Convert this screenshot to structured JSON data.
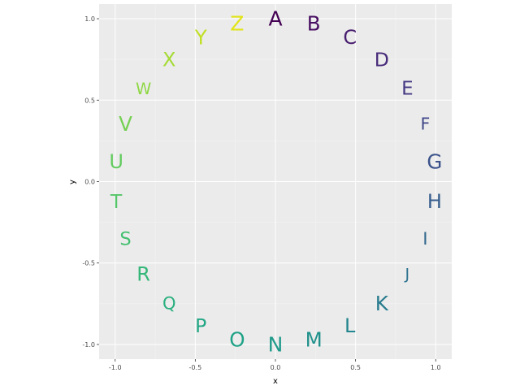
{
  "chart_data": {
    "type": "scatter",
    "title": "",
    "xlabel": "x",
    "ylabel": "y",
    "xlim": [
      -1.1,
      1.1
    ],
    "ylim": [
      -1.09,
      1.09
    ],
    "xticks": [
      -1.0,
      -0.5,
      0.0,
      0.5,
      1.0
    ],
    "xtick_labels": [
      "-1.0",
      "-0.5",
      "0.0",
      "0.5",
      "1.0"
    ],
    "yticks": [
      -1.0,
      -0.5,
      0.0,
      0.5,
      1.0
    ],
    "ytick_labels": [
      "-1.0",
      "-0.5",
      "0.0",
      "0.5",
      "1.0"
    ],
    "grid": true,
    "legend": "none",
    "background_color": "#ebebeb",
    "colormap": "viridis",
    "points": [
      {
        "label": "A",
        "x": 0.0,
        "y": 1.0,
        "size": 1.0,
        "color": "#440154"
      },
      {
        "label": "B",
        "x": 0.239,
        "y": 0.971,
        "size": 0.98,
        "color": "#470e61"
      },
      {
        "label": "C",
        "x": 0.465,
        "y": 0.885,
        "size": 0.96,
        "color": "#481d6f"
      },
      {
        "label": "D",
        "x": 0.663,
        "y": 0.749,
        "size": 0.94,
        "color": "#472a7a"
      },
      {
        "label": "E",
        "x": 0.823,
        "y": 0.568,
        "size": 0.92,
        "color": "#443983"
      },
      {
        "label": "F",
        "x": 0.935,
        "y": 0.355,
        "size": 0.82,
        "color": "#3f4788"
      },
      {
        "label": "G",
        "x": 0.993,
        "y": 0.121,
        "size": 0.98,
        "color": "#3b528b"
      },
      {
        "label": "H",
        "x": 0.993,
        "y": -0.121,
        "size": 0.96,
        "color": "#365d8d"
      },
      {
        "label": "I",
        "x": 0.935,
        "y": -0.355,
        "size": 0.85,
        "color": "#31688e"
      },
      {
        "label": "J",
        "x": 0.823,
        "y": -0.568,
        "size": 0.76,
        "color": "#2c728e"
      },
      {
        "label": "K",
        "x": 0.663,
        "y": -0.749,
        "size": 0.98,
        "color": "#287c8e"
      },
      {
        "label": "L",
        "x": 0.465,
        "y": -0.885,
        "size": 0.96,
        "color": "#24868e"
      },
      {
        "label": "M",
        "x": 0.239,
        "y": -0.971,
        "size": 0.98,
        "color": "#21918c"
      },
      {
        "label": "N",
        "x": 0.0,
        "y": -1.0,
        "size": 1.0,
        "color": "#1f9a8a"
      },
      {
        "label": "O",
        "x": -0.239,
        "y": -0.971,
        "size": 0.98,
        "color": "#1fa287"
      },
      {
        "label": "P",
        "x": -0.465,
        "y": -0.885,
        "size": 0.94,
        "color": "#22a785"
      },
      {
        "label": "Q",
        "x": -0.663,
        "y": -0.749,
        "size": 0.84,
        "color": "#2ab07f"
      },
      {
        "label": "R",
        "x": -0.823,
        "y": -0.568,
        "size": 0.96,
        "color": "#35b779"
      },
      {
        "label": "S",
        "x": -0.935,
        "y": -0.355,
        "size": 0.9,
        "color": "#44bf70"
      },
      {
        "label": "T",
        "x": -0.993,
        "y": -0.121,
        "size": 0.94,
        "color": "#54c568"
      },
      {
        "label": "U",
        "x": -0.993,
        "y": 0.121,
        "size": 0.96,
        "color": "#62cb5f"
      },
      {
        "label": "V",
        "x": -0.935,
        "y": 0.355,
        "size": 0.98,
        "color": "#75d054"
      },
      {
        "label": "W",
        "x": -0.823,
        "y": 0.568,
        "size": 0.78,
        "color": "#8fd744"
      },
      {
        "label": "X",
        "x": -0.663,
        "y": 0.749,
        "size": 0.96,
        "color": "#a5db36"
      },
      {
        "label": "Y",
        "x": -0.465,
        "y": 0.885,
        "size": 0.98,
        "color": "#c0df25"
      },
      {
        "label": "Z",
        "x": -0.239,
        "y": 0.971,
        "size": 1.0,
        "color": "#e2e418"
      }
    ]
  }
}
